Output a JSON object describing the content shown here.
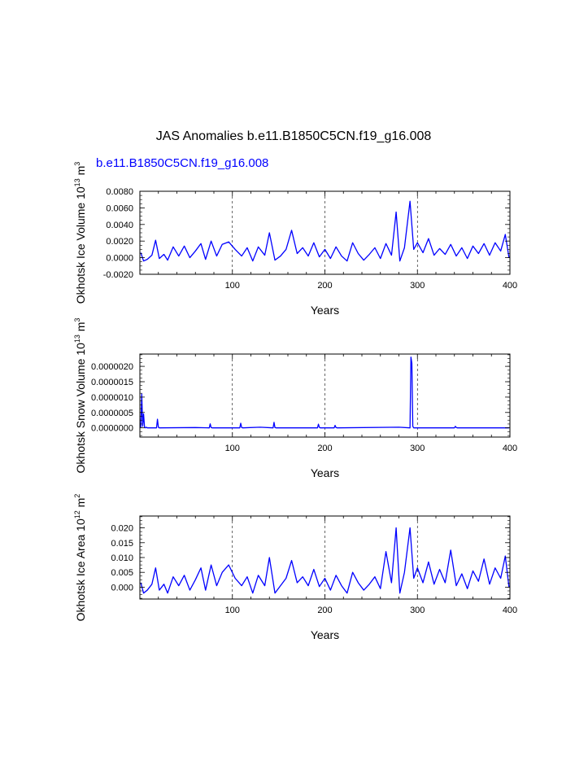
{
  "title": "JAS Anomalies b.e11.B1850C5CN.f19_g16.008",
  "subtitle": "b.e11.B1850C5CN.f19_g16.008",
  "colors": {
    "series": "#0000ff",
    "text": "#000000",
    "axis": "#000000"
  },
  "chart_data": [
    {
      "type": "line",
      "ylabel": "Okhotsk Ice Volume 10",
      "ylabel_exp": "13",
      "ylabel_unit": "m",
      "ylabel_unit_exp": "3",
      "xlabel": "Years",
      "xlim": [
        0,
        400
      ],
      "ylim": [
        -0.002,
        0.008
      ],
      "x_ticks": [
        "100",
        "200",
        "300",
        "400"
      ],
      "y_ticks": [
        "-0.0020",
        "0.0000",
        "0.0020",
        "0.0040",
        "0.0060",
        "0.0080"
      ],
      "grid": "vertical dashed at 100, 200, 300",
      "series": [
        {
          "x": [
            1,
            4,
            8,
            13,
            17,
            21,
            26,
            30,
            36,
            42,
            48,
            54,
            60,
            66,
            71,
            77,
            83,
            89,
            96,
            103,
            110,
            116,
            122,
            128,
            135,
            140,
            146,
            152,
            158,
            164,
            170,
            176,
            182,
            188,
            194,
            200,
            206,
            212,
            218,
            224,
            230,
            236,
            242,
            248,
            254,
            260,
            266,
            272,
            277,
            281,
            286,
            292,
            296,
            300,
            306,
            312,
            318,
            324,
            330,
            336,
            342,
            348,
            354,
            360,
            366,
            372,
            378,
            384,
            390,
            395,
            399
          ],
          "values": [
            0.0006,
            -0.0004,
            -0.0002,
            0.0003,
            0.0021,
            -0.0001,
            0.0004,
            -0.0003,
            0.0013,
            0.0002,
            0.0014,
            0.0,
            0.0008,
            0.0017,
            -0.0002,
            0.002,
            0.0002,
            0.0016,
            0.0019,
            0.001,
            0.0002,
            0.0012,
            -0.0004,
            0.0013,
            0.0003,
            0.003,
            -0.0003,
            0.0002,
            0.001,
            0.0033,
            0.0005,
            0.0012,
            0.0002,
            0.0018,
            0.0001,
            0.001,
            -0.0001,
            0.0013,
            0.0002,
            -0.0004,
            0.0018,
            0.0005,
            -0.0003,
            0.0004,
            0.0012,
            -0.0001,
            0.0017,
            0.0003,
            0.0055,
            -0.0004,
            0.0012,
            0.0068,
            0.001,
            0.0018,
            0.0006,
            0.0023,
            0.0003,
            0.0011,
            0.0004,
            0.0016,
            0.0002,
            0.0012,
            -0.0001,
            0.0014,
            0.0005,
            0.0017,
            0.0003,
            0.0018,
            0.0008,
            0.0028,
            0.0
          ]
        }
      ]
    },
    {
      "type": "line",
      "ylabel": "Okhotsk Snow Volume 10",
      "ylabel_exp": "13",
      "ylabel_unit": "m",
      "ylabel_unit_exp": "3",
      "xlabel": "Years",
      "xlim": [
        0,
        400
      ],
      "ylim": [
        -3e-07,
        2.4e-06
      ],
      "x_ticks": [
        "100",
        "200",
        "300",
        "400"
      ],
      "y_ticks": [
        "0.0000000",
        "0.0000005",
        "0.0000010",
        "0.0000015",
        "0.0000020"
      ],
      "grid": "vertical dashed at 100, 200, 300",
      "series": [
        {
          "x": [
            1,
            2,
            3,
            4,
            5,
            6,
            7,
            8,
            18,
            19,
            20,
            21,
            60,
            75,
            76,
            77,
            78,
            108,
            109,
            110,
            111,
            130,
            144,
            145,
            146,
            147,
            192,
            193,
            194,
            195,
            210,
            211,
            212,
            213,
            280,
            292,
            293,
            294,
            295,
            296,
            297,
            340,
            341,
            342,
            343,
            399
          ],
          "values": [
            2e-08,
            1.1e-06,
            5e-08,
            4.5e-07,
            3e-08,
            0.0,
            2e-08,
            0.0,
            0.0,
            2.8e-07,
            2e-08,
            0.0,
            1e-08,
            0.0,
            1.3e-07,
            1e-08,
            0.0,
            0.0,
            1.5e-07,
            1e-08,
            0.0,
            2e-08,
            0.0,
            1.8e-07,
            1e-08,
            0.0,
            0.0,
            1.2e-07,
            2e-08,
            0.0,
            0.0,
            8e-08,
            1e-08,
            0.0,
            2e-08,
            0.0,
            2.3e-06,
            2.1e-06,
            5e-08,
            0.0,
            0.0,
            0.0,
            5e-08,
            1e-08,
            0.0,
            0.0
          ]
        }
      ]
    },
    {
      "type": "line",
      "ylabel": "Okhotsk Ice Area 10",
      "ylabel_exp": "12",
      "ylabel_unit": "m",
      "ylabel_unit_exp": "2",
      "xlabel": "Years",
      "xlim": [
        0,
        400
      ],
      "ylim": [
        -0.004,
        0.024
      ],
      "x_ticks": [
        "100",
        "200",
        "300",
        "400"
      ],
      "y_ticks": [
        "0.000",
        "0.005",
        "0.010",
        "0.015",
        "0.020"
      ],
      "grid": "vertical dashed at 100, 200, 300",
      "series": [
        {
          "x": [
            1,
            4,
            8,
            13,
            17,
            21,
            26,
            30,
            36,
            42,
            48,
            54,
            60,
            66,
            71,
            77,
            83,
            89,
            96,
            103,
            110,
            116,
            122,
            128,
            135,
            140,
            146,
            152,
            158,
            164,
            170,
            176,
            182,
            188,
            194,
            200,
            206,
            212,
            218,
            224,
            230,
            236,
            242,
            248,
            254,
            260,
            266,
            272,
            277,
            281,
            286,
            292,
            296,
            300,
            306,
            312,
            318,
            324,
            330,
            336,
            342,
            348,
            354,
            360,
            366,
            372,
            378,
            384,
            390,
            395,
            399
          ],
          "values": [
            0.0015,
            -0.002,
            -0.001,
            0.001,
            0.0065,
            -0.001,
            0.001,
            -0.002,
            0.0035,
            0.0005,
            0.004,
            -0.001,
            0.0025,
            0.0065,
            -0.001,
            0.0075,
            0.0005,
            0.005,
            0.0075,
            0.003,
            0.0005,
            0.0035,
            -0.002,
            0.004,
            0.0005,
            0.01,
            -0.002,
            0.0005,
            0.003,
            0.009,
            0.0015,
            0.0035,
            0.0005,
            0.006,
            0.0002,
            0.003,
            -0.001,
            0.004,
            0.0005,
            -0.002,
            0.005,
            0.0015,
            -0.001,
            0.001,
            0.0035,
            -0.0005,
            0.012,
            0.0015,
            0.02,
            -0.002,
            0.005,
            0.02,
            0.003,
            0.0065,
            0.0015,
            0.0085,
            0.001,
            0.006,
            0.0015,
            0.0125,
            0.0005,
            0.0045,
            -0.0005,
            0.0055,
            0.002,
            0.0095,
            0.001,
            0.0065,
            0.003,
            0.0105,
            0.0
          ]
        }
      ]
    }
  ]
}
